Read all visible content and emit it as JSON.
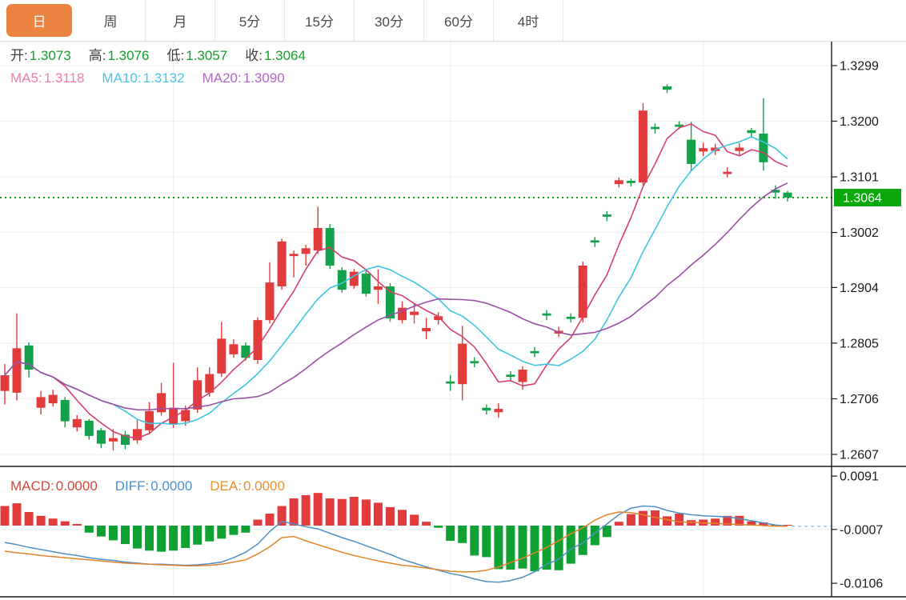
{
  "tabs": {
    "items": [
      {
        "label": "日",
        "active": true
      },
      {
        "label": "周",
        "active": false
      },
      {
        "label": "月",
        "active": false
      },
      {
        "label": "5分",
        "active": false
      },
      {
        "label": "15分",
        "active": false
      },
      {
        "label": "30分",
        "active": false
      },
      {
        "label": "60分",
        "active": false
      },
      {
        "label": "4时",
        "active": false
      }
    ]
  },
  "legend_ohlc": {
    "items": [
      {
        "label": "开:",
        "value": "1.3073"
      },
      {
        "label": "高:",
        "value": "1.3076"
      },
      {
        "label": "低:",
        "value": "1.3057"
      },
      {
        "label": "收:",
        "value": "1.3064"
      }
    ]
  },
  "legend_ma": {
    "items": [
      {
        "label": "MA5:",
        "value": "1.3118"
      },
      {
        "label": "MA10:",
        "value": "1.3132"
      },
      {
        "label": "MA20:",
        "value": "1.3090"
      }
    ]
  },
  "legend_macd": {
    "items": [
      {
        "label": "MACD:",
        "value": "0.0000"
      },
      {
        "label": "DIFF:",
        "value": "0.0000"
      },
      {
        "label": "DEA:",
        "value": "0.0000"
      }
    ]
  },
  "colors": {
    "up": "#e23b3b",
    "down": "#13a24b",
    "macd_up": "#e23b3b",
    "macd_down": "#0fa132",
    "ma5_line": "#d6406a",
    "ma10_line": "#3fc6e0",
    "ma20_line": "#9b50a5",
    "diff_line": "#4f8fc4",
    "dea_line": "#e2842d",
    "dash_tail": "#a9c7e0",
    "current_line": "#0aa80a",
    "badge_bg": "#0aa80a",
    "badge_text": "#ffffff",
    "grid": "#ededed",
    "axis": "#1a1a1a",
    "tick_text": "#1a1a1a"
  },
  "chart_data": [
    {
      "type": "candlestick",
      "title": "",
      "xlabel": "",
      "ylabel": "",
      "grid": true,
      "legend_position": "top-left-overlay",
      "y_axis_ticks": [
        "1.3299",
        "1.3200",
        "1.3101",
        "1.3002",
        "1.2904",
        "1.2805",
        "1.2706",
        "1.2607"
      ],
      "current_price": 1.3064,
      "current_price_label": "1.3064",
      "ma_periods": [
        5,
        10,
        20
      ],
      "vertical_gridline_indices": [
        14,
        37,
        58
      ],
      "candle_columns": [
        "open",
        "high",
        "low",
        "close"
      ],
      "candles": [
        [
          1.272,
          1.2768,
          1.2696,
          1.2748
        ],
        [
          1.2717,
          1.2858,
          1.2703,
          1.2796
        ],
        [
          1.2801,
          1.2806,
          1.2744,
          1.2758
        ],
        [
          1.269,
          1.272,
          1.2678,
          1.2709
        ],
        [
          1.2698,
          1.2722,
          1.2692,
          1.2713
        ],
        [
          1.2704,
          1.2709,
          1.2655,
          1.2666
        ],
        [
          1.2655,
          1.2677,
          1.2648,
          1.267
        ],
        [
          1.2667,
          1.267,
          1.2633,
          1.264
        ],
        [
          1.265,
          1.2654,
          1.2618,
          1.2626
        ],
        [
          1.263,
          1.2652,
          1.2614,
          1.2636
        ],
        [
          1.2642,
          1.2649,
          1.2616,
          1.2624
        ],
        [
          1.2632,
          1.2668,
          1.2626,
          1.2652
        ],
        [
          1.265,
          1.27,
          1.2644,
          1.2684
        ],
        [
          1.2682,
          1.2734,
          1.2676,
          1.2716
        ],
        [
          1.266,
          1.277,
          1.2654,
          1.269
        ],
        [
          1.2666,
          1.2694,
          1.2658,
          1.2686
        ],
        [
          1.2687,
          1.2762,
          1.2681,
          1.2739
        ],
        [
          1.2717,
          1.2762,
          1.271,
          1.275
        ],
        [
          1.2751,
          1.2843,
          1.2745,
          1.2813
        ],
        [
          1.2785,
          1.2812,
          1.2779,
          1.2803
        ],
        [
          1.2801,
          1.2806,
          1.2774,
          1.2779
        ],
        [
          1.2775,
          1.2851,
          1.2768,
          1.2846
        ],
        [
          1.2846,
          1.2949,
          1.284,
          1.2913
        ],
        [
          1.2906,
          1.2991,
          1.29,
          1.2986
        ],
        [
          1.296,
          1.297,
          1.2922,
          1.2964
        ],
        [
          1.2964,
          1.298,
          1.2943,
          1.2974
        ],
        [
          1.297,
          1.3048,
          1.2964,
          1.301
        ],
        [
          1.301,
          1.3017,
          1.2937,
          1.2943
        ],
        [
          1.2935,
          1.294,
          1.2895,
          1.29
        ],
        [
          1.2907,
          1.2937,
          1.2902,
          1.2932
        ],
        [
          1.2929,
          1.2935,
          1.2888,
          1.2893
        ],
        [
          1.29,
          1.2936,
          1.2875,
          1.2906
        ],
        [
          1.2906,
          1.2912,
          1.2843,
          1.2849
        ],
        [
          1.2846,
          1.2879,
          1.284,
          1.2868
        ],
        [
          1.2855,
          1.2875,
          1.284,
          1.2861
        ],
        [
          1.2826,
          1.285,
          1.2812,
          1.2832
        ],
        [
          1.2846,
          1.286,
          1.2838,
          1.2853
        ],
        [
          1.2737,
          1.2748,
          1.272,
          1.2733
        ],
        [
          1.2732,
          1.2836,
          1.2703,
          1.2804
        ],
        [
          1.2773,
          1.278,
          1.2762,
          1.2769
        ],
        [
          1.269,
          1.2696,
          1.2678,
          1.2685
        ],
        [
          1.2682,
          1.2698,
          1.2672,
          1.2688
        ],
        [
          1.2749,
          1.2755,
          1.2739,
          1.2745
        ],
        [
          1.2736,
          1.2764,
          1.2722,
          1.2758
        ],
        [
          1.2791,
          1.2798,
          1.278,
          1.2787
        ],
        [
          1.2858,
          1.2864,
          1.2846,
          1.2854
        ],
        [
          1.2822,
          1.2834,
          1.2816,
          1.2827
        ],
        [
          1.2852,
          1.2858,
          1.2842,
          1.2848
        ],
        [
          1.285,
          1.295,
          1.2842,
          1.2943
        ],
        [
          1.2988,
          1.2994,
          1.2976,
          1.2984
        ],
        [
          1.3034,
          1.304,
          1.3022,
          1.303
        ],
        [
          1.3088,
          1.31,
          1.3082,
          1.3095
        ],
        [
          1.3094,
          1.3098,
          1.3084,
          1.309
        ],
        [
          1.3091,
          1.3232,
          1.3085,
          1.3219
        ],
        [
          1.319,
          1.3196,
          1.3178,
          1.3186
        ],
        [
          1.3262,
          1.3266,
          1.325,
          1.3256
        ],
        [
          1.3194,
          1.32,
          1.3186,
          1.319
        ],
        [
          1.3167,
          1.3199,
          1.311,
          1.3124
        ],
        [
          1.3146,
          1.3162,
          1.3138,
          1.3152
        ],
        [
          1.3147,
          1.316,
          1.314,
          1.3153
        ],
        [
          1.3106,
          1.3118,
          1.31,
          1.311
        ],
        [
          1.3147,
          1.3161,
          1.3139,
          1.3153
        ],
        [
          1.3184,
          1.3188,
          1.3171,
          1.3179
        ],
        [
          1.3178,
          1.3241,
          1.3112,
          1.3127
        ],
        [
          1.3078,
          1.3086,
          1.3062,
          1.3073
        ],
        [
          1.3073,
          1.3076,
          1.3057,
          1.3064
        ]
      ]
    },
    {
      "type": "bar",
      "title": "MACD",
      "y_axis_ticks": [
        "0.0091",
        "-0.0007",
        "-0.0106"
      ],
      "gridline_tick": -0.0007,
      "tail_dashed_from_index": 65,
      "histogram": [
        0.0036,
        0.0041,
        0.0025,
        0.0018,
        0.0013,
        0.0008,
        0.0003,
        -0.0013,
        -0.002,
        -0.0027,
        -0.0034,
        -0.0042,
        -0.0046,
        -0.0048,
        -0.0046,
        -0.0041,
        -0.0035,
        -0.0029,
        -0.0024,
        -0.0017,
        -0.0013,
        0.0011,
        0.0022,
        0.0036,
        0.005,
        0.0056,
        0.006,
        0.005,
        0.0049,
        0.0053,
        0.0048,
        0.0042,
        0.0034,
        0.0029,
        0.002,
        0.0007,
        -0.0004,
        -0.0028,
        -0.0032,
        -0.0055,
        -0.0058,
        -0.008,
        -0.0081,
        -0.0079,
        -0.0084,
        -0.0081,
        -0.0082,
        -0.007,
        -0.0054,
        -0.0036,
        -0.0021,
        0.0007,
        0.0021,
        0.0027,
        0.0028,
        0.0017,
        0.0022,
        0.001,
        0.0011,
        0.0013,
        0.0018,
        0.0018,
        0.0008,
        0.0006,
        0.0001,
        0.0
      ],
      "diff": [
        -0.0031,
        -0.0035,
        -0.004,
        -0.0044,
        -0.0048,
        -0.0052,
        -0.0055,
        -0.0059,
        -0.0062,
        -0.0064,
        -0.0067,
        -0.0069,
        -0.0071,
        -0.0071,
        -0.0072,
        -0.0073,
        -0.0072,
        -0.007,
        -0.0067,
        -0.0059,
        -0.0049,
        -0.0034,
        -0.0011,
        0.0008,
        0.0003,
        -0.0002,
        -0.0006,
        -0.0014,
        -0.0022,
        -0.0029,
        -0.0037,
        -0.0045,
        -0.0053,
        -0.0062,
        -0.0069,
        -0.0076,
        -0.0082,
        -0.0088,
        -0.0092,
        -0.0098,
        -0.0103,
        -0.0104,
        -0.0101,
        -0.0095,
        -0.0085,
        -0.0071,
        -0.0062,
        -0.0043,
        -0.0032,
        -0.0014,
        0.0003,
        0.002,
        0.0032,
        0.0036,
        0.0035,
        0.0028,
        0.0023,
        0.002,
        0.0018,
        0.0017,
        0.0016,
        0.0013,
        0.0009,
        0.0005,
        0.0001,
        -0.0001
      ],
      "dea": [
        -0.0047,
        -0.005,
        -0.0052,
        -0.0055,
        -0.0057,
        -0.0059,
        -0.0061,
        -0.0063,
        -0.0065,
        -0.0067,
        -0.0069,
        -0.007,
        -0.0071,
        -0.0072,
        -0.0073,
        -0.0074,
        -0.0074,
        -0.0073,
        -0.0071,
        -0.0067,
        -0.0063,
        -0.0052,
        -0.0039,
        -0.0022,
        -0.002,
        -0.0028,
        -0.0035,
        -0.0042,
        -0.0049,
        -0.0055,
        -0.006,
        -0.0065,
        -0.0069,
        -0.0073,
        -0.0075,
        -0.0078,
        -0.0081,
        -0.0084,
        -0.0085,
        -0.0085,
        -0.0082,
        -0.0076,
        -0.0068,
        -0.006,
        -0.005,
        -0.004,
        -0.0028,
        -0.0015,
        -0.0004,
        0.001,
        0.002,
        0.0025,
        0.0024,
        0.002,
        0.0015,
        0.0011,
        0.0007,
        0.0006,
        0.0005,
        0.0004,
        0.0003,
        0.0002,
        0.0001,
        0.0,
        -0.0001,
        -0.0001
      ]
    }
  ]
}
